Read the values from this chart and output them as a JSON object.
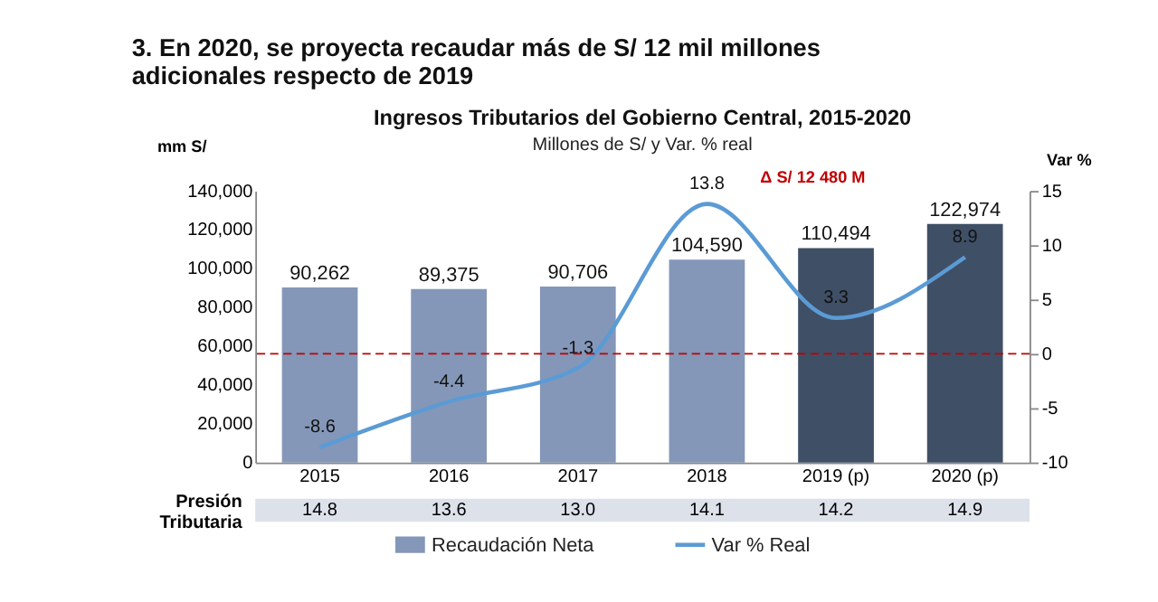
{
  "chart_data": {
    "type": "bar",
    "title": "3. En 2020, se proyecta recaudar más de S/ 12 mil millones adicionales respecto de 2019",
    "subtitle": "Ingresos Tributarios del Gobierno Central, 2015-2020",
    "ylabel": "mm S/",
    "y2label": "Var %",
    "categories": [
      "2015",
      "2016",
      "2017",
      "2018",
      "2019 (p)",
      "2020 (p)"
    ],
    "series": [
      {
        "name": "Recaudación Neta",
        "value_labels": [
          "90,262",
          "89,375",
          "90,706",
          "104,590",
          "110,494",
          "122,974"
        ],
        "color": "#8497b8",
        "colors": [
          "#8497b8",
          "#8497b8",
          "#8497b8",
          "#8497b8",
          "#3f4f66",
          "#3f4f66"
        ],
        "values": [
          90262,
          89375,
          90706,
          104590,
          110494,
          122974
        ]
      },
      {
        "name": "Var % Real",
        "type": "line",
        "axis": "y2",
        "color": "#5b9bd5",
        "values": [
          -8.6,
          -4.4,
          -1.3,
          13.8,
          3.3,
          8.9
        ]
      }
    ],
    "ylim": [
      0,
      140000
    ],
    "yticks": [
      0,
      {
        "value": 20000,
        "label": "20,000"
      },
      {
        "value": 40000,
        "label": "40,000"
      },
      {
        "value": 60000,
        "label": "60,000"
      },
      {
        "value": 80000,
        "label": "80,000"
      },
      {
        "value": 100000,
        "label": "100,000"
      },
      {
        "value": 120000,
        "label": "120,000"
      },
      {
        "value": 140000,
        "label": "140,000"
      }
    ],
    "y2lim": [
      -10,
      15
    ],
    "y2ticks": [
      -10,
      -5,
      0,
      5,
      10,
      15
    ],
    "ref_lines": [
      {
        "axis": "y2",
        "value": 0,
        "color": "#c00000",
        "line_style": "dashed"
      }
    ],
    "annotations": [
      "Millones de S/ y Var. % real",
      "Δ S/ 12 480 M",
      "Presión Tributaria",
      "14.8",
      "13.6",
      "13.0",
      "14.1",
      "14.2",
      "14.9"
    ],
    "data_labels": true,
    "legend": "bottom",
    "grid": false
  }
}
